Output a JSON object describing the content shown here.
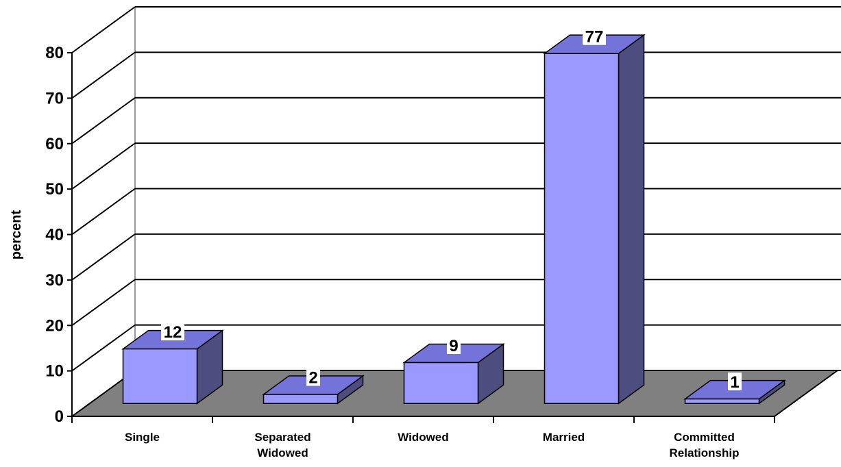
{
  "chart_data": {
    "type": "bar",
    "y_label": "percent",
    "categories": [
      [
        "Single"
      ],
      [
        "Separated",
        "Widowed"
      ],
      [
        "Widowed"
      ],
      [
        "Married"
      ],
      [
        "Committed",
        "Relationship"
      ]
    ],
    "values": [
      12,
      2,
      9,
      77,
      1
    ],
    "colors": {
      "front": "#9999ff",
      "top": "#7373d9",
      "side": "#4d4d80",
      "floor": "#808080"
    },
    "ylim": [
      0,
      80
    ],
    "yticks": [
      0,
      10,
      20,
      30,
      40,
      50,
      60,
      70,
      80
    ],
    "grid": true
  }
}
